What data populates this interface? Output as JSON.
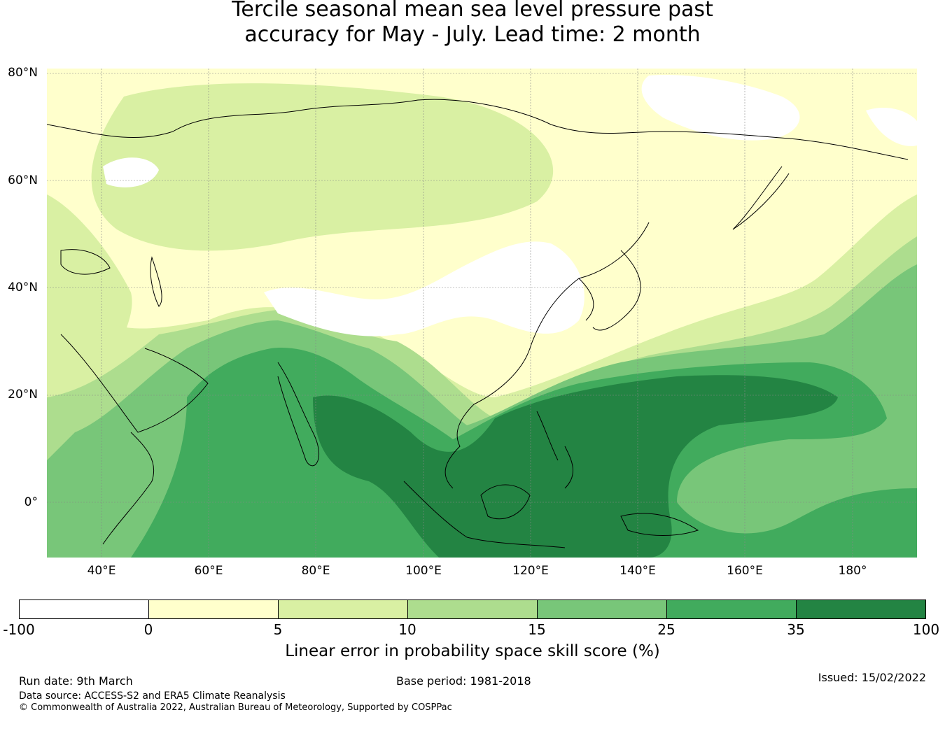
{
  "title": {
    "line1": "Tercile seasonal mean sea level pressure past",
    "line2": "accuracy for May - July. Lead time: 2 month"
  },
  "map": {
    "lat_labels": [
      "80°N",
      "60°N",
      "40°N",
      "20°N",
      "0°"
    ],
    "lon_labels": [
      "40°E",
      "60°E",
      "80°E",
      "100°E",
      "120°E",
      "140°E",
      "160°E",
      "180°"
    ],
    "colors": {
      "negative": "#ffffff",
      "c0_5": "#ffffcc",
      "c5_10": "#d9f0a3",
      "c10_15": "#addd8e",
      "c15_25": "#78c679",
      "c25_35": "#41ab5d",
      "c35_100": "#238443",
      "coast": "#000000",
      "grid": "#888888"
    }
  },
  "colorbar": {
    "ticks": [
      "-100",
      "0",
      "5",
      "10",
      "15",
      "25",
      "35",
      "100"
    ],
    "label": "Linear error in probability space skill score (%)"
  },
  "footer": {
    "run_date": "Run date: 9th March",
    "base_period": "Base period: 1981-2018",
    "issued": "Issued: 15/02/2022",
    "data_source": "Data source: ACCESS-S2 and ERA5 Climate Reanalysis",
    "copyright": "© Commonwealth of Australia 2022, Australian Bureau of Meteorology, Supported by COSPPac"
  }
}
